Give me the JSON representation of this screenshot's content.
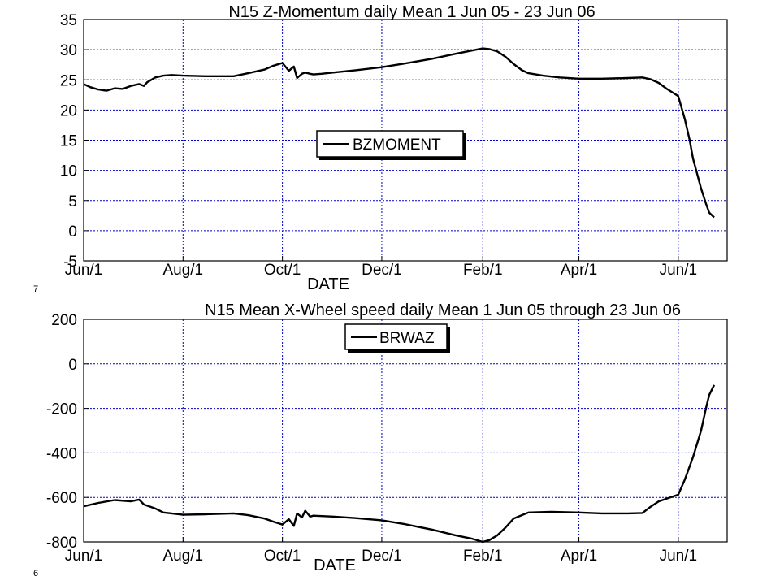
{
  "chart_data": [
    {
      "type": "line",
      "title": "N15 Z-Momentum daily Mean 1 Jun 05 - 23 Jun 06",
      "xlabel": "DATE",
      "ylabel": "",
      "x_ticks": [
        "Jun/1",
        "Aug/1",
        "Oct/1",
        "Dec/1",
        "Feb/1",
        "Apr/1",
        "Jun/1"
      ],
      "x_range": [
        "2005-06-01",
        "2006-07-01"
      ],
      "ylim": [
        -5,
        35
      ],
      "y_ticks": [
        35,
        30,
        25,
        20,
        15,
        10,
        5,
        0,
        -5
      ],
      "grid": true,
      "legend_position": "center",
      "series": [
        {
          "name": "BZMOMENT",
          "x": [
            "2005-06-01",
            "2005-06-05",
            "2005-06-10",
            "2005-06-15",
            "2005-06-20",
            "2005-06-25",
            "2005-06-30",
            "2005-07-05",
            "2005-07-08",
            "2005-07-10",
            "2005-07-15",
            "2005-07-20",
            "2005-07-25",
            "2005-08-01",
            "2005-08-15",
            "2005-09-01",
            "2005-09-10",
            "2005-09-20",
            "2005-09-25",
            "2005-10-01",
            "2005-10-05",
            "2005-10-08",
            "2005-10-10",
            "2005-10-13",
            "2005-10-15",
            "2005-10-18",
            "2005-10-20",
            "2005-10-25",
            "2005-11-01",
            "2005-11-15",
            "2005-12-01",
            "2005-12-15",
            "2006-01-01",
            "2006-01-15",
            "2006-02-01",
            "2006-02-05",
            "2006-02-10",
            "2006-02-15",
            "2006-02-20",
            "2006-02-25",
            "2006-03-01",
            "2006-03-10",
            "2006-03-20",
            "2006-04-01",
            "2006-04-15",
            "2006-05-01",
            "2006-05-10",
            "2006-05-15",
            "2006-05-20",
            "2006-05-25",
            "2006-05-28",
            "2006-06-01",
            "2006-06-05",
            "2006-06-08",
            "2006-06-10",
            "2006-06-12",
            "2006-06-15",
            "2006-06-18",
            "2006-06-20",
            "2006-06-23"
          ],
          "values": [
            24.3,
            23.8,
            23.4,
            23.2,
            23.6,
            23.5,
            24.0,
            24.3,
            24.0,
            24.6,
            25.4,
            25.7,
            25.8,
            25.7,
            25.6,
            25.6,
            26.1,
            26.7,
            27.3,
            27.8,
            26.5,
            27.2,
            25.3,
            26.0,
            26.2,
            26.0,
            25.9,
            26.0,
            26.2,
            26.6,
            27.1,
            27.7,
            28.5,
            29.3,
            30.2,
            30.1,
            29.7,
            28.8,
            27.6,
            26.6,
            26.1,
            25.7,
            25.4,
            25.2,
            25.2,
            25.3,
            25.4,
            25.1,
            24.5,
            23.5,
            23.0,
            22.3,
            18.5,
            15.0,
            12.0,
            10.0,
            7.0,
            4.5,
            3.0,
            2.2
          ]
        }
      ]
    },
    {
      "type": "line",
      "title": "N15 Mean  X-Wheel speed daily Mean 1 Jun 05 through 23 Jun 06",
      "xlabel": "DATE",
      "ylabel": "",
      "x_ticks": [
        "Jun/1",
        "Aug/1",
        "Oct/1",
        "Dec/1",
        "Feb/1",
        "Apr/1",
        "Jun/1"
      ],
      "x_range": [
        "2005-06-01",
        "2006-07-01"
      ],
      "ylim": [
        -800,
        200
      ],
      "y_ticks": [
        200,
        0,
        -200,
        -400,
        -600,
        -800
      ],
      "grid": true,
      "legend_position": "top-center",
      "series": [
        {
          "name": "BRWAZ",
          "x": [
            "2005-06-01",
            "2005-06-10",
            "2005-06-20",
            "2005-06-30",
            "2005-07-05",
            "2005-07-08",
            "2005-07-15",
            "2005-07-20",
            "2005-08-01",
            "2005-08-15",
            "2005-09-01",
            "2005-09-10",
            "2005-09-20",
            "2005-09-25",
            "2005-10-01",
            "2005-10-05",
            "2005-10-08",
            "2005-10-10",
            "2005-10-13",
            "2005-10-15",
            "2005-10-18",
            "2005-10-20",
            "2005-11-01",
            "2005-11-15",
            "2005-12-01",
            "2005-12-15",
            "2006-01-01",
            "2006-01-15",
            "2006-01-25",
            "2006-02-01",
            "2006-02-05",
            "2006-02-10",
            "2006-02-15",
            "2006-02-20",
            "2006-03-01",
            "2006-03-15",
            "2006-04-01",
            "2006-04-15",
            "2006-05-01",
            "2006-05-10",
            "2006-05-15",
            "2006-05-20",
            "2006-05-25",
            "2006-06-01",
            "2006-06-05",
            "2006-06-10",
            "2006-06-15",
            "2006-06-18",
            "2006-06-20",
            "2006-06-23"
          ],
          "values": [
            -640,
            -625,
            -612,
            -618,
            -610,
            -632,
            -650,
            -668,
            -678,
            -676,
            -672,
            -680,
            -695,
            -708,
            -722,
            -698,
            -728,
            -672,
            -690,
            -660,
            -686,
            -682,
            -686,
            -693,
            -703,
            -720,
            -745,
            -770,
            -785,
            -800,
            -792,
            -770,
            -735,
            -695,
            -668,
            -665,
            -668,
            -672,
            -672,
            -670,
            -642,
            -618,
            -605,
            -588,
            -520,
            -420,
            -300,
            -200,
            -140,
            -95
          ]
        }
      ]
    }
  ],
  "page_numbers": [
    "7",
    "6"
  ]
}
